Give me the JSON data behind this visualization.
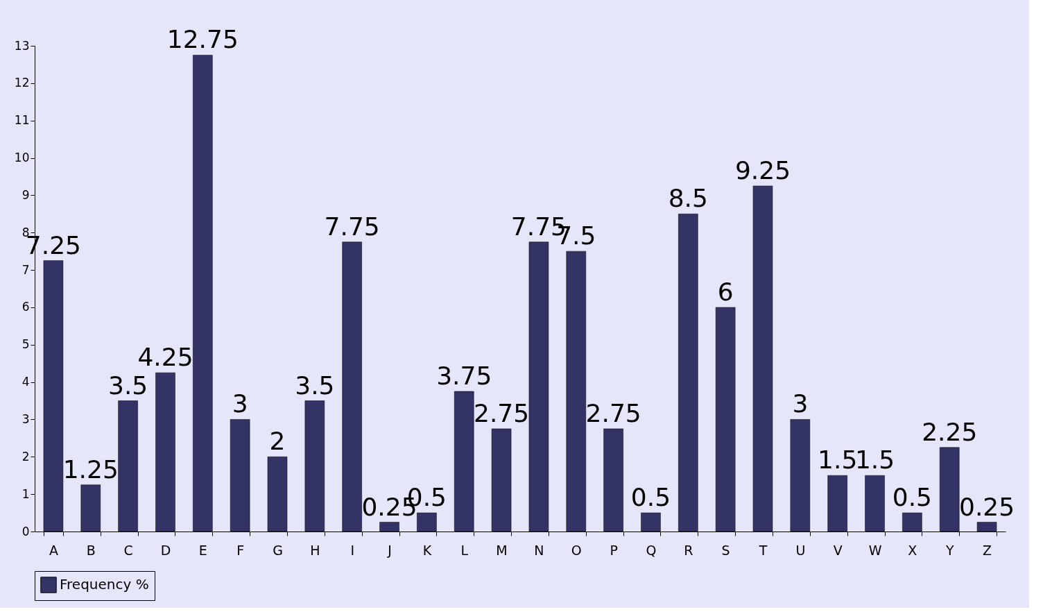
{
  "chart_data": {
    "type": "bar",
    "categories": [
      "A",
      "B",
      "C",
      "D",
      "E",
      "F",
      "G",
      "H",
      "I",
      "J",
      "K",
      "L",
      "M",
      "N",
      "O",
      "P",
      "Q",
      "R",
      "S",
      "T",
      "U",
      "V",
      "W",
      "X",
      "Y",
      "Z"
    ],
    "series": [
      {
        "name": "Frequency %",
        "color": "#333366",
        "values": [
          7.25,
          1.25,
          3.5,
          4.25,
          12.75,
          3,
          2,
          3.5,
          7.75,
          0.25,
          0.5,
          3.75,
          2.75,
          7.75,
          7.5,
          2.75,
          0.5,
          8.5,
          6,
          9.25,
          3,
          1.5,
          1.5,
          0.5,
          2.25,
          0.25
        ]
      }
    ],
    "ylim": [
      0,
      13
    ],
    "yticks": [
      0,
      1,
      2,
      3,
      4,
      5,
      6,
      7,
      8,
      9,
      10,
      11,
      12,
      13
    ],
    "data_labels": true,
    "legend": "bottom",
    "grid": false
  }
}
